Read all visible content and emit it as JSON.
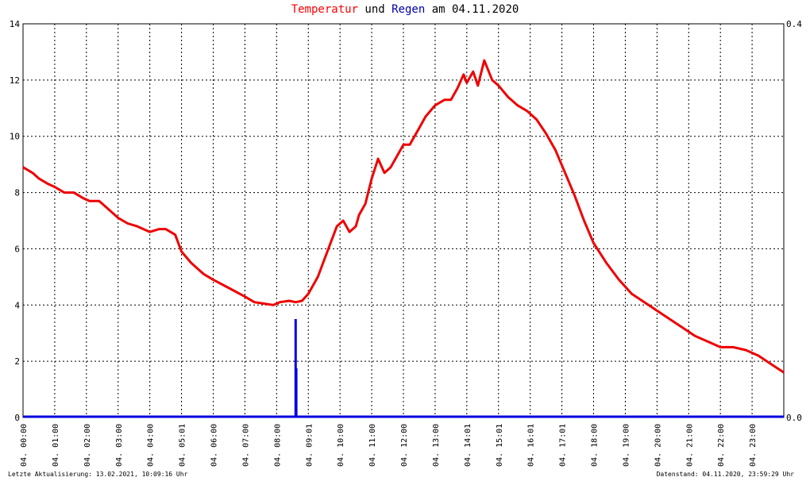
{
  "title": {
    "part1": "Temperatur",
    "part2": " und ",
    "part3": "Regen",
    "part4": " am 04.11.2020"
  },
  "footer": {
    "left": "Letzte Aktualisierung: 13.02.2021, 10:09:16 Uhr",
    "right": "Datenstand: 04.11.2020, 23:59:29 Uhr"
  },
  "colors": {
    "temperature": "#ee0000",
    "rain": "#0000dd",
    "grid": "#000000"
  },
  "chart_data": {
    "type": "line",
    "x_unit": "hours",
    "xlim": [
      0,
      24
    ],
    "ylim_left": [
      0,
      14
    ],
    "ylim_right": [
      0,
      0.4
    ],
    "y_ticks_left": [
      "0",
      "2",
      "4",
      "6",
      "8",
      "10",
      "12",
      "14"
    ],
    "y_ticks_right": [
      "0.0",
      "0.4"
    ],
    "x_tick_labels": [
      "04. 00:00",
      "04. 01:00",
      "04. 02:00",
      "04. 03:00",
      "04. 04:00",
      "04. 05:01",
      "04. 06:00",
      "04. 07:00",
      "04. 08:00",
      "04. 09:01",
      "04. 10:00",
      "04. 11:00",
      "04. 12:00",
      "04. 13:00",
      "04. 14:01",
      "04. 15:01",
      "04. 16:01",
      "04. 17:01",
      "04. 18:00",
      "04. 19:00",
      "04. 20:00",
      "04. 21:00",
      "04. 22:00",
      "04. 23:00"
    ],
    "grid": true,
    "series": [
      {
        "name": "Temperatur",
        "axis": "left",
        "x": [
          0,
          0.3,
          0.5,
          0.8,
          1.0,
          1.3,
          1.6,
          1.9,
          2.1,
          2.4,
          2.6,
          2.8,
          3.0,
          3.3,
          3.6,
          4.0,
          4.3,
          4.5,
          4.8,
          5.0,
          5.3,
          5.7,
          6.0,
          6.5,
          7.0,
          7.3,
          7.6,
          7.9,
          8.1,
          8.4,
          8.6,
          8.8,
          9.0,
          9.3,
          9.5,
          9.7,
          9.9,
          10.1,
          10.3,
          10.5,
          10.6,
          10.8,
          11.0,
          11.2,
          11.4,
          11.6,
          11.8,
          12.0,
          12.2,
          12.5,
          12.7,
          13.0,
          13.3,
          13.5,
          13.7,
          13.9,
          14.0,
          14.2,
          14.35,
          14.55,
          14.8,
          15.0,
          15.3,
          15.6,
          15.9,
          16.2,
          16.5,
          16.8,
          17.1,
          17.4,
          17.7,
          18.0,
          18.4,
          18.8,
          19.2,
          19.6,
          20.0,
          20.4,
          20.8,
          21.2,
          21.6,
          22.0,
          22.4,
          22.8,
          23.2,
          23.6,
          24.0
        ],
        "values": [
          8.9,
          8.7,
          8.5,
          8.3,
          8.2,
          8.0,
          8.0,
          7.8,
          7.7,
          7.7,
          7.5,
          7.3,
          7.1,
          6.9,
          6.8,
          6.6,
          6.7,
          6.7,
          6.5,
          5.9,
          5.5,
          5.1,
          4.9,
          4.6,
          4.3,
          4.1,
          4.05,
          4.0,
          4.1,
          4.15,
          4.1,
          4.15,
          4.4,
          5.0,
          5.6,
          6.2,
          6.8,
          7.0,
          6.6,
          6.8,
          7.2,
          7.6,
          8.5,
          9.2,
          8.7,
          8.9,
          9.3,
          9.7,
          9.7,
          10.3,
          10.7,
          11.1,
          11.3,
          11.3,
          11.7,
          12.2,
          11.9,
          12.3,
          11.8,
          12.7,
          12.0,
          11.8,
          11.4,
          11.1,
          10.9,
          10.6,
          10.1,
          9.5,
          8.7,
          7.9,
          7.0,
          6.2,
          5.5,
          4.9,
          4.4,
          4.1,
          3.8,
          3.5,
          3.2,
          2.9,
          2.7,
          2.5,
          2.5,
          2.4,
          2.2,
          1.9,
          1.6
        ]
      },
      {
        "name": "Regen",
        "axis": "right",
        "x": [
          8.6,
          8.62
        ],
        "values": [
          0.1,
          0.05
        ]
      }
    ]
  }
}
